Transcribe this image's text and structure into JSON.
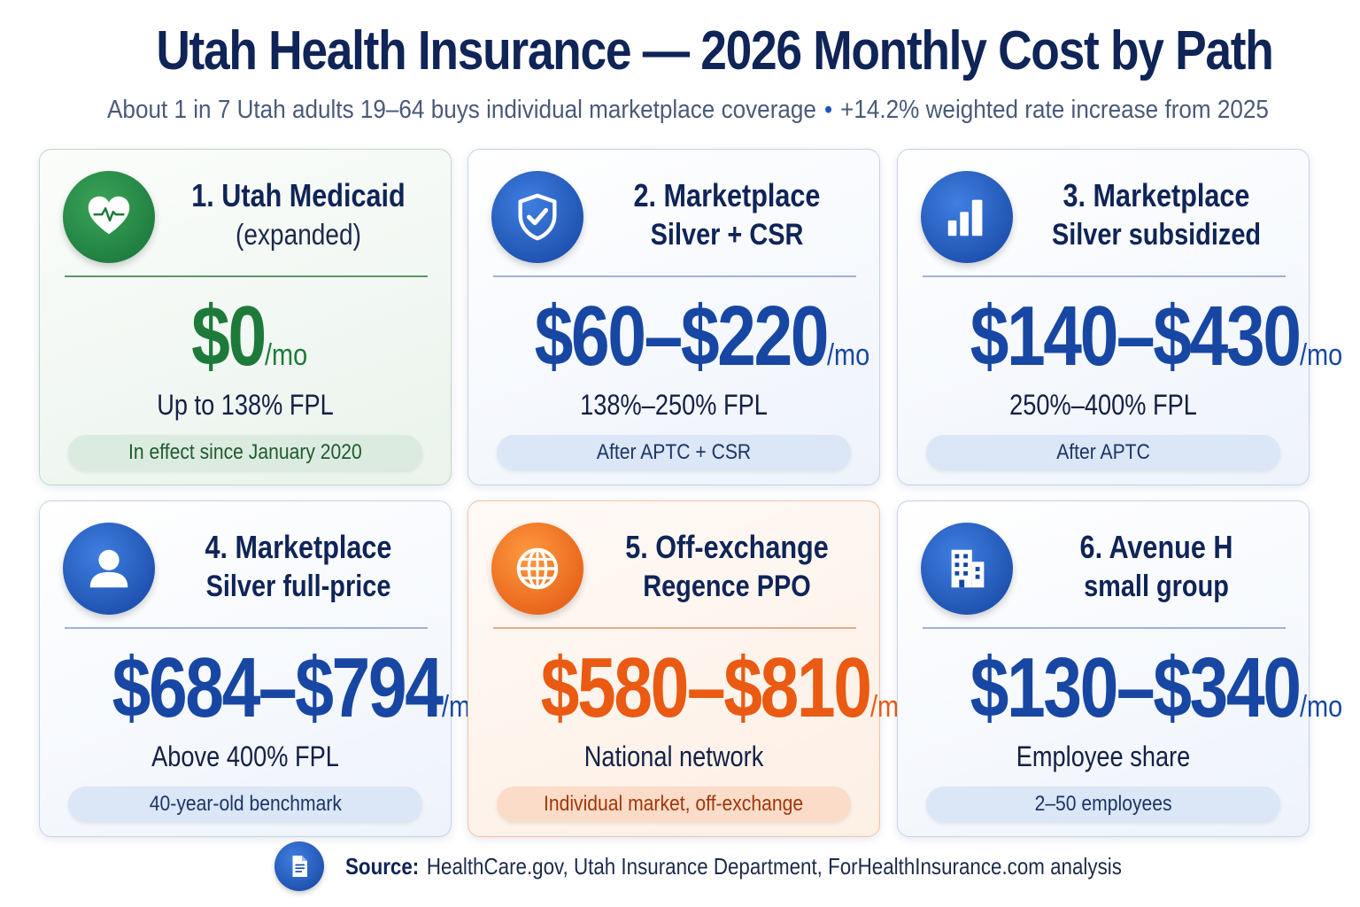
{
  "header": {
    "title": "Utah Health Insurance — 2026 Monthly Cost by Path",
    "subtitle_left": "About 1 in 7 Utah adults 19–64 buys individual marketplace coverage",
    "subtitle_sep": "•",
    "subtitle_right": "+14.2% weighted rate increase from 2025"
  },
  "cards": [
    {
      "title_line1": "1. Utah Medicaid",
      "title_line2": "(expanded)",
      "price": "$0",
      "per": "/mo",
      "desc": "Up to 138% FPL",
      "note": "In effect since January 2020",
      "icon": "heart-pulse-icon",
      "accent": "#1e7a3a"
    },
    {
      "title_line1": "2. Marketplace",
      "title_line2": "Silver + CSR",
      "price": "$60–$220",
      "per": "/mo",
      "desc": "138%–250% FPL",
      "note": "After APTC + CSR",
      "icon": "shield-check-icon",
      "accent": "#1747a3"
    },
    {
      "title_line1": "3. Marketplace",
      "title_line2": "Silver subsidized",
      "price": "$140–$430",
      "per": "/mo",
      "desc": "250%–400% FPL",
      "note": "After APTC",
      "icon": "bar-chart-icon",
      "accent": "#1747a3"
    },
    {
      "title_line1": "4. Marketplace",
      "title_line2": "Silver full-price",
      "price": "$684–$794",
      "per": "/mo",
      "desc": "Above 400% FPL",
      "note": "40-year-old benchmark",
      "icon": "person-icon",
      "accent": "#1747a3"
    },
    {
      "title_line1": "5. Off-exchange",
      "title_line2": "Regence PPO",
      "price": "$580–$810",
      "per": "/mo",
      "desc": "National network",
      "note": "Individual market, off-exchange",
      "icon": "globe-icon",
      "accent": "#ea5a12"
    },
    {
      "title_line1": "6. Avenue H",
      "title_line2": "small group",
      "price": "$130–$340",
      "per": "/mo",
      "desc": "Employee share",
      "note": "2–50 employees",
      "icon": "building-icon",
      "accent": "#1747a3"
    }
  ],
  "footer": {
    "source_label": "Source:",
    "source_text": "HealthCare.gov, Utah Insurance Department, ForHealthInsurance.com analysis",
    "icon": "document-icon"
  }
}
